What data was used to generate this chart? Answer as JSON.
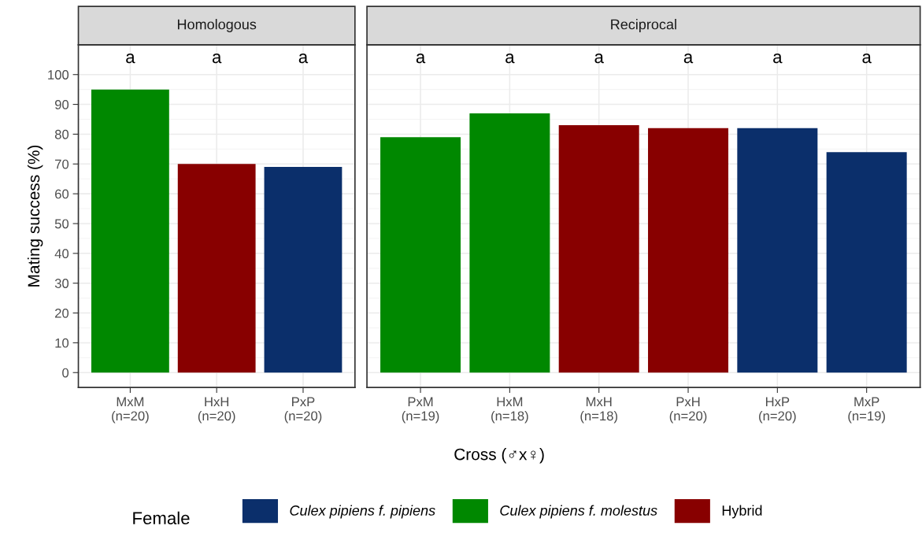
{
  "chart_data": [
    {
      "type": "bar",
      "title": "Homologous",
      "ylabel": "Mating success (%)",
      "categories": [
        "MxM\n(n=20)",
        "HxH\n(n=20)",
        "PxP\n(n=20)"
      ],
      "stacked": true,
      "series": [
        {
          "color": "#0b2f6b",
          "values": [
            null,
            null,
            69
          ]
        },
        {
          "color": "#008800",
          "values": [
            95,
            null,
            null
          ]
        },
        {
          "color": "#880000",
          "values": [
            null,
            70,
            null
          ]
        }
      ],
      "ylim": [
        -5,
        110
      ],
      "yticks": [
        0,
        10,
        20,
        30,
        40,
        50,
        60,
        70,
        80,
        90,
        100
      ],
      "grid": true,
      "annotations": [
        "a",
        "a",
        "a"
      ]
    },
    {
      "type": "bar",
      "title": "Reciprocal",
      "xlabel": "Cross (♂x♀)",
      "legend_title": "Female",
      "legend": "bottom",
      "tick_labels": "x",
      "stacked": true,
      "categories": [
        "PxM\n(n=19)",
        "HxM\n(n=18)",
        "MxH\n(n=18)",
        "PxH\n(n=20)",
        "HxP\n(n=20)",
        "MxP\n(n=19)"
      ],
      "series": [
        {
          "name": "Culex pipiens f. pipiens",
          "color": "#0b2f6b",
          "values": [
            null,
            null,
            null,
            null,
            82,
            74
          ]
        },
        {
          "name": "Culex pipiens f. molestus",
          "color": "#008800",
          "values": [
            79,
            87,
            null,
            null,
            null,
            null
          ]
        },
        {
          "name": "Hybrid",
          "color": "#880000",
          "values": [
            null,
            null,
            83,
            82,
            null,
            null
          ]
        }
      ],
      "ylim": [
        -5,
        110
      ],
      "yticks": [
        0,
        10,
        20,
        30,
        40,
        50,
        60,
        70,
        80,
        90,
        100
      ],
      "grid": true,
      "annotations": [
        "a",
        "a",
        "a",
        "a",
        "a",
        "a"
      ]
    }
  ]
}
